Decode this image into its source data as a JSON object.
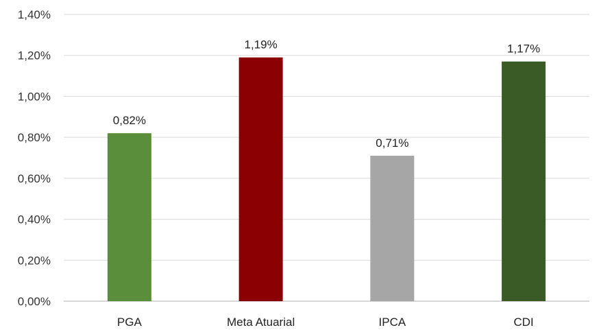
{
  "chart_data": {
    "type": "bar",
    "title": "",
    "xlabel": "",
    "ylabel": "",
    "categories": [
      "PGA",
      "Meta Atuarial",
      "IPCA",
      "CDI"
    ],
    "values": [
      0.82,
      1.19,
      0.71,
      1.17
    ],
    "data_labels": [
      "0,82%",
      "1,19%",
      "0,71%",
      "1,17%"
    ],
    "colors": [
      "#5b8e3a",
      "#8b0000",
      "#a6a6a6",
      "#3a5a26"
    ],
    "ylim": [
      0,
      1.4
    ],
    "yticks": [
      0,
      0.2,
      0.4,
      0.6,
      0.8,
      1.0,
      1.2,
      1.4
    ],
    "ytick_labels": [
      "0,00%",
      "0,20%",
      "0,40%",
      "0,60%",
      "0,80%",
      "1,00%",
      "1,20%",
      "1,40%"
    ],
    "grid": true,
    "legend": "none"
  }
}
